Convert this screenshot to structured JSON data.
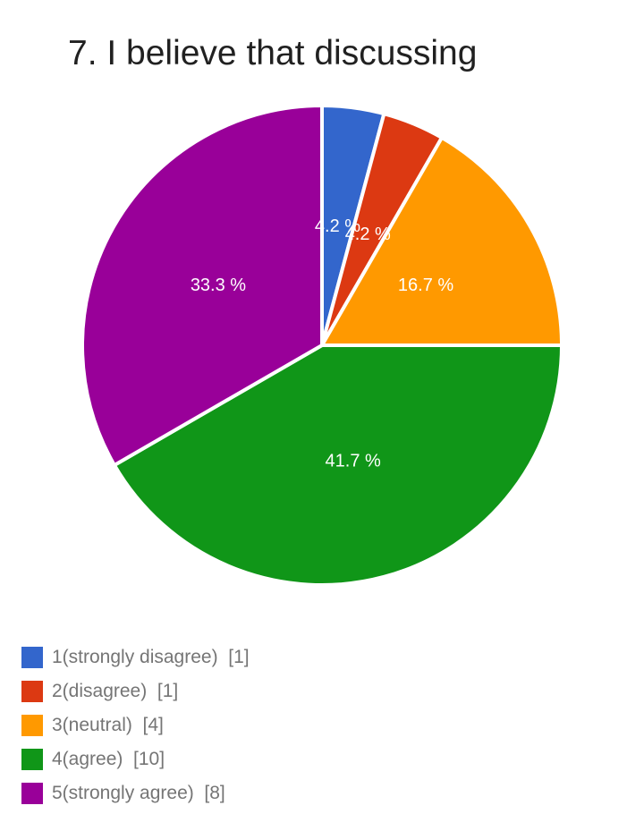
{
  "chart_data": {
    "type": "pie",
    "title": "7. I believe that discussing",
    "slices": [
      {
        "category": "1(strongly disagree)",
        "count": 1,
        "percent_label": "4.2 %",
        "color": "#3366cc"
      },
      {
        "category": "2(disagree)",
        "count": 1,
        "percent_label": "4.2 %",
        "color": "#dc3912"
      },
      {
        "category": "3(neutral)",
        "count": 4,
        "percent_label": "16.7 %",
        "color": "#ff9900"
      },
      {
        "category": "4(agree)",
        "count": 10,
        "percent_label": "41.7 %",
        "color": "#109618"
      },
      {
        "category": "5(strongly agree)",
        "count": 8,
        "percent_label": "33.3 %",
        "color": "#990099"
      }
    ],
    "legend_placement": "bottom-left"
  }
}
